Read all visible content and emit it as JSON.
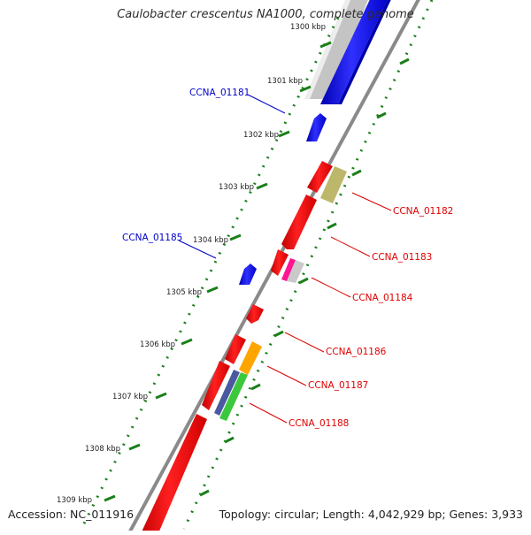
{
  "map": {
    "title": "Caulobacter crescentus NA1000, complete genome",
    "accession": "Accession: NC_011916",
    "summary": "Topology: circular; Length: 4,042,929 bp; Genes: 3,933"
  },
  "colors": {
    "forward": "#0000ff",
    "reverse": "#ff0000",
    "backbone": "#888888",
    "ticks": "#1a7f1a",
    "label_forward": "#0000cc",
    "label_reverse": "#dd0000",
    "tick_text": "#222222"
  },
  "ticks": [
    "1300 kbp",
    "1301 kbp",
    "1302 kbp",
    "1303 kbp",
    "1304 kbp",
    "1305 kbp",
    "1306 kbp",
    "1307 kbp",
    "1308 kbp",
    "1309 kbp"
  ],
  "gene_labels": [
    {
      "name": "CCNA_01181",
      "strand": "forward"
    },
    {
      "name": "CCNA_01185",
      "strand": "forward"
    },
    {
      "name": "CCNA_01182",
      "strand": "reverse"
    },
    {
      "name": "CCNA_01183",
      "strand": "reverse"
    },
    {
      "name": "CCNA_01184",
      "strand": "reverse"
    },
    {
      "name": "CCNA_01186",
      "strand": "reverse"
    },
    {
      "name": "CCNA_01187",
      "strand": "reverse"
    },
    {
      "name": "CCNA_01188",
      "strand": "reverse"
    }
  ]
}
